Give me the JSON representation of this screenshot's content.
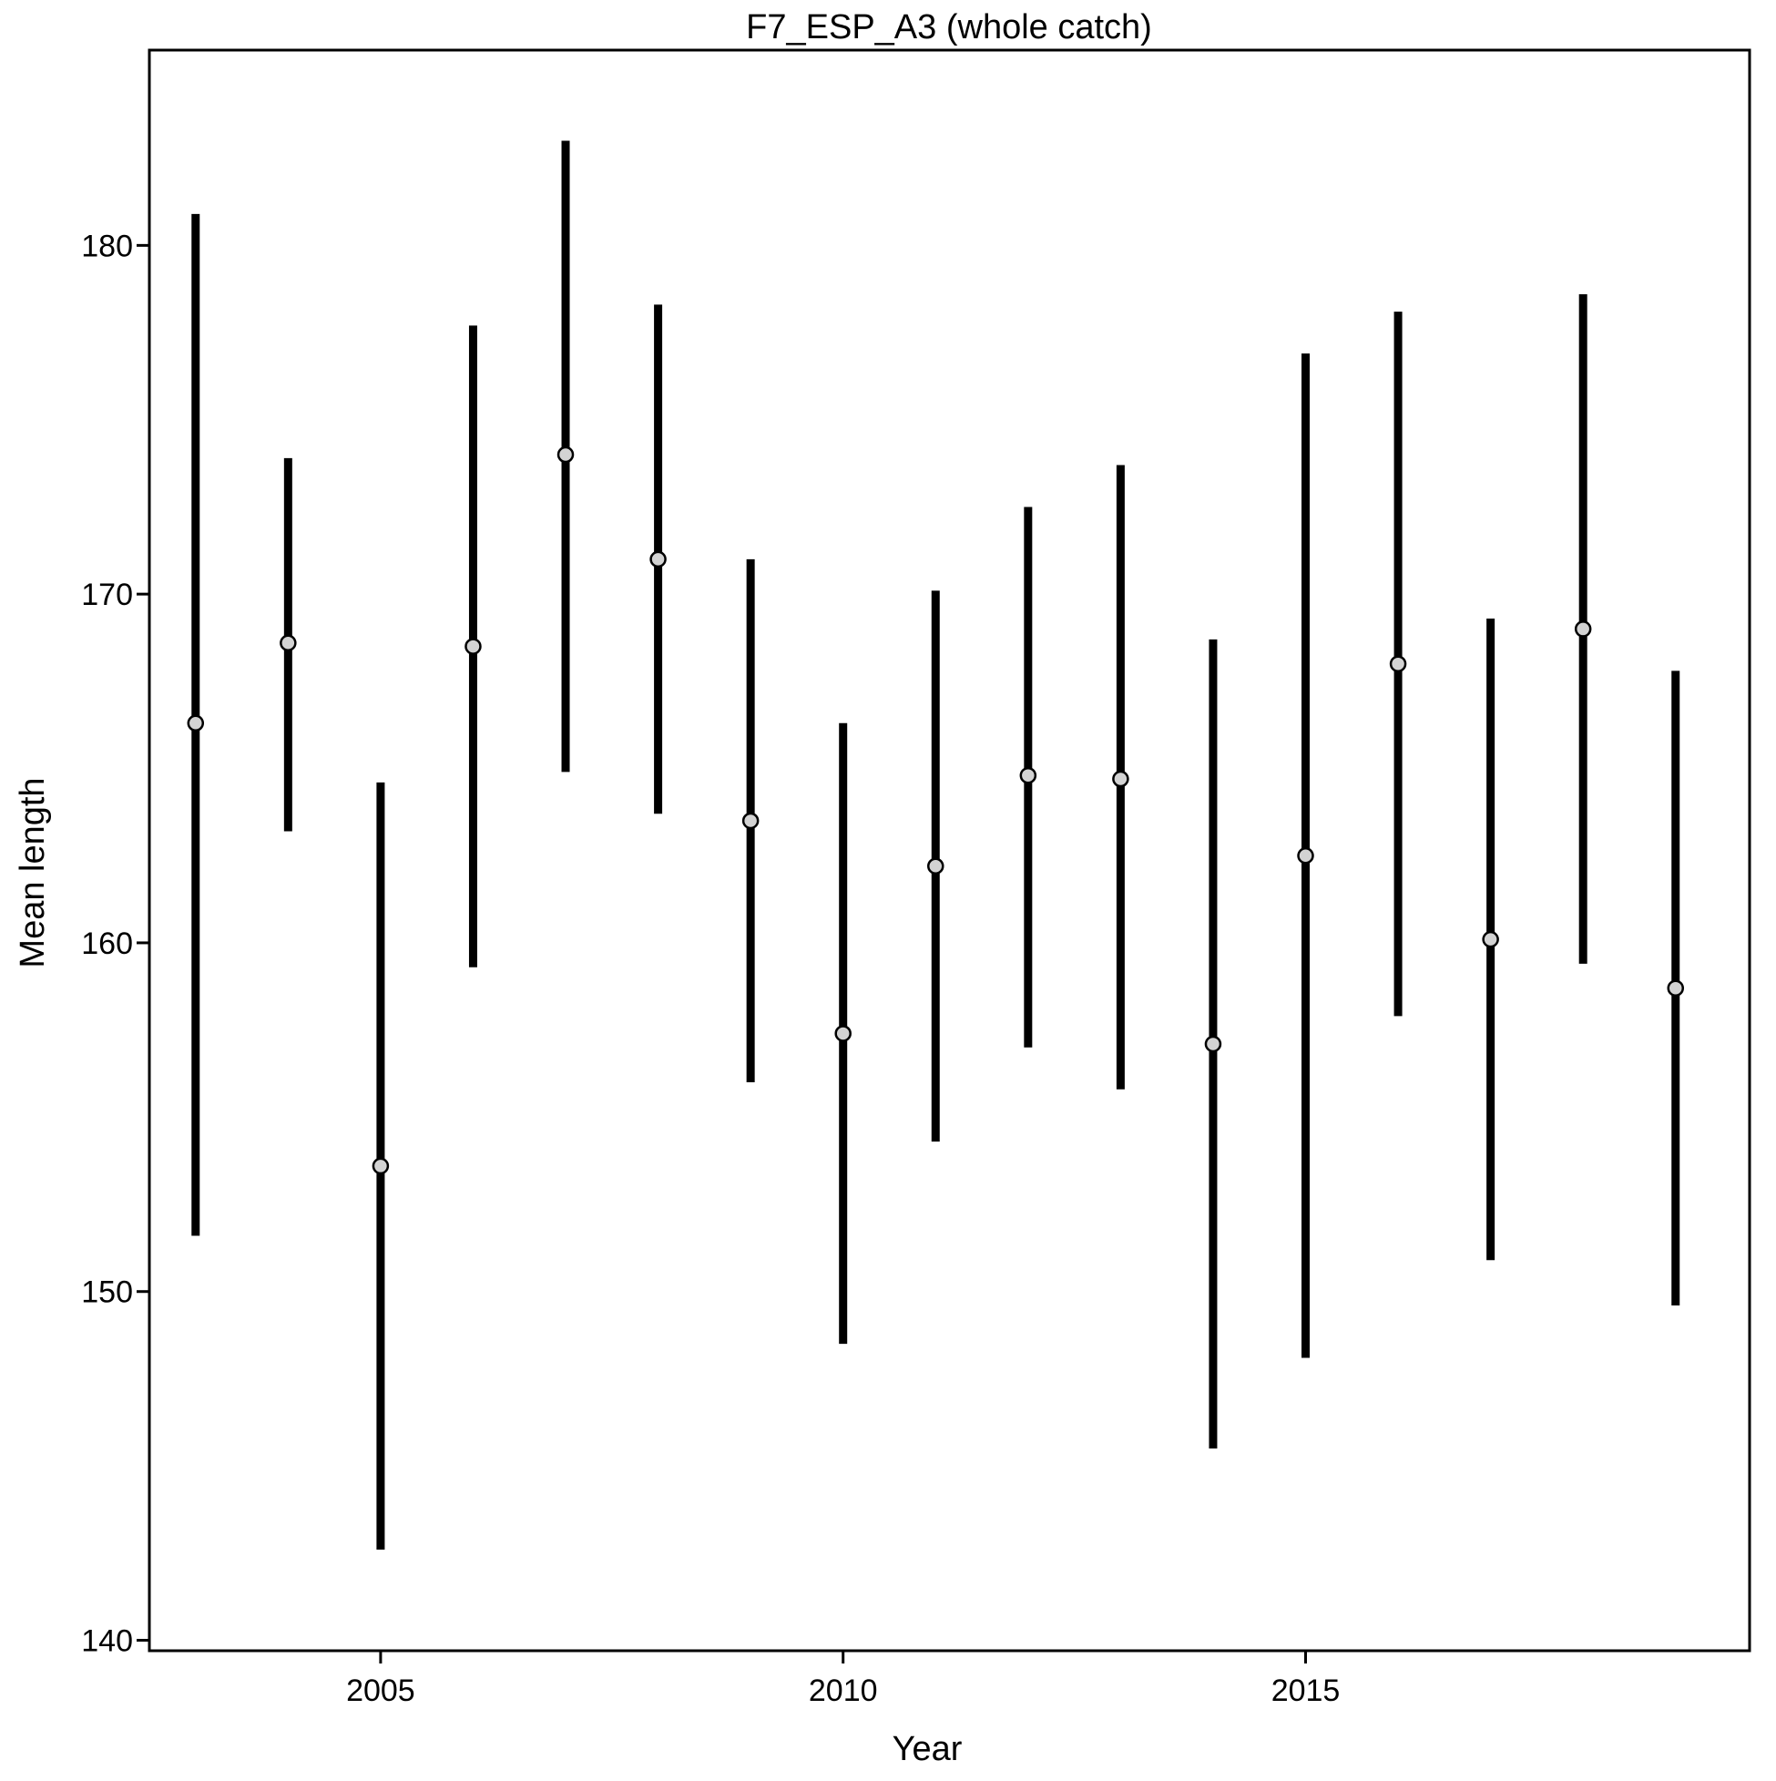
{
  "chart_data": {
    "type": "scatter",
    "title": "F7_ESP_A3 (whole catch)",
    "xlabel": "Year",
    "ylabel": "Mean length",
    "xlim": [
      2002.5,
      2019.8
    ],
    "ylim": [
      139.7,
      185.6
    ],
    "xticks": [
      2005,
      2010,
      2015
    ],
    "yticks": [
      140,
      150,
      160,
      170,
      180
    ],
    "grid": false,
    "legend": "none",
    "series": [
      {
        "marker_fill": "#d3d3d3",
        "marker_edge": "#000000",
        "bar_color": "#000000",
        "points": [
          {
            "x": 2003,
            "y": 166.3,
            "low": 151.6,
            "high": 180.9
          },
          {
            "x": 2004,
            "y": 168.6,
            "low": 163.2,
            "high": 173.9
          },
          {
            "x": 2005,
            "y": 153.6,
            "low": 142.6,
            "high": 164.6
          },
          {
            "x": 2006,
            "y": 168.5,
            "low": 159.3,
            "high": 177.7
          },
          {
            "x": 2007,
            "y": 174.0,
            "low": 164.9,
            "high": 183.0
          },
          {
            "x": 2008,
            "y": 171.0,
            "low": 163.7,
            "high": 178.3
          },
          {
            "x": 2009,
            "y": 163.5,
            "low": 156.0,
            "high": 171.0
          },
          {
            "x": 2010,
            "y": 157.4,
            "low": 148.5,
            "high": 166.3
          },
          {
            "x": 2011,
            "y": 162.2,
            "low": 154.3,
            "high": 170.1
          },
          {
            "x": 2012,
            "y": 164.8,
            "low": 157.0,
            "high": 172.5
          },
          {
            "x": 2013,
            "y": 164.7,
            "low": 155.8,
            "high": 173.7
          },
          {
            "x": 2014,
            "y": 157.1,
            "low": 145.5,
            "high": 168.7
          },
          {
            "x": 2015,
            "y": 162.5,
            "low": 148.1,
            "high": 176.9
          },
          {
            "x": 2016,
            "y": 168.0,
            "low": 157.9,
            "high": 178.1
          },
          {
            "x": 2017,
            "y": 160.1,
            "low": 150.9,
            "high": 169.3
          },
          {
            "x": 2018,
            "y": 169.0,
            "low": 159.4,
            "high": 178.6
          },
          {
            "x": 2019,
            "y": 158.7,
            "low": 149.6,
            "high": 167.8
          }
        ]
      }
    ]
  }
}
